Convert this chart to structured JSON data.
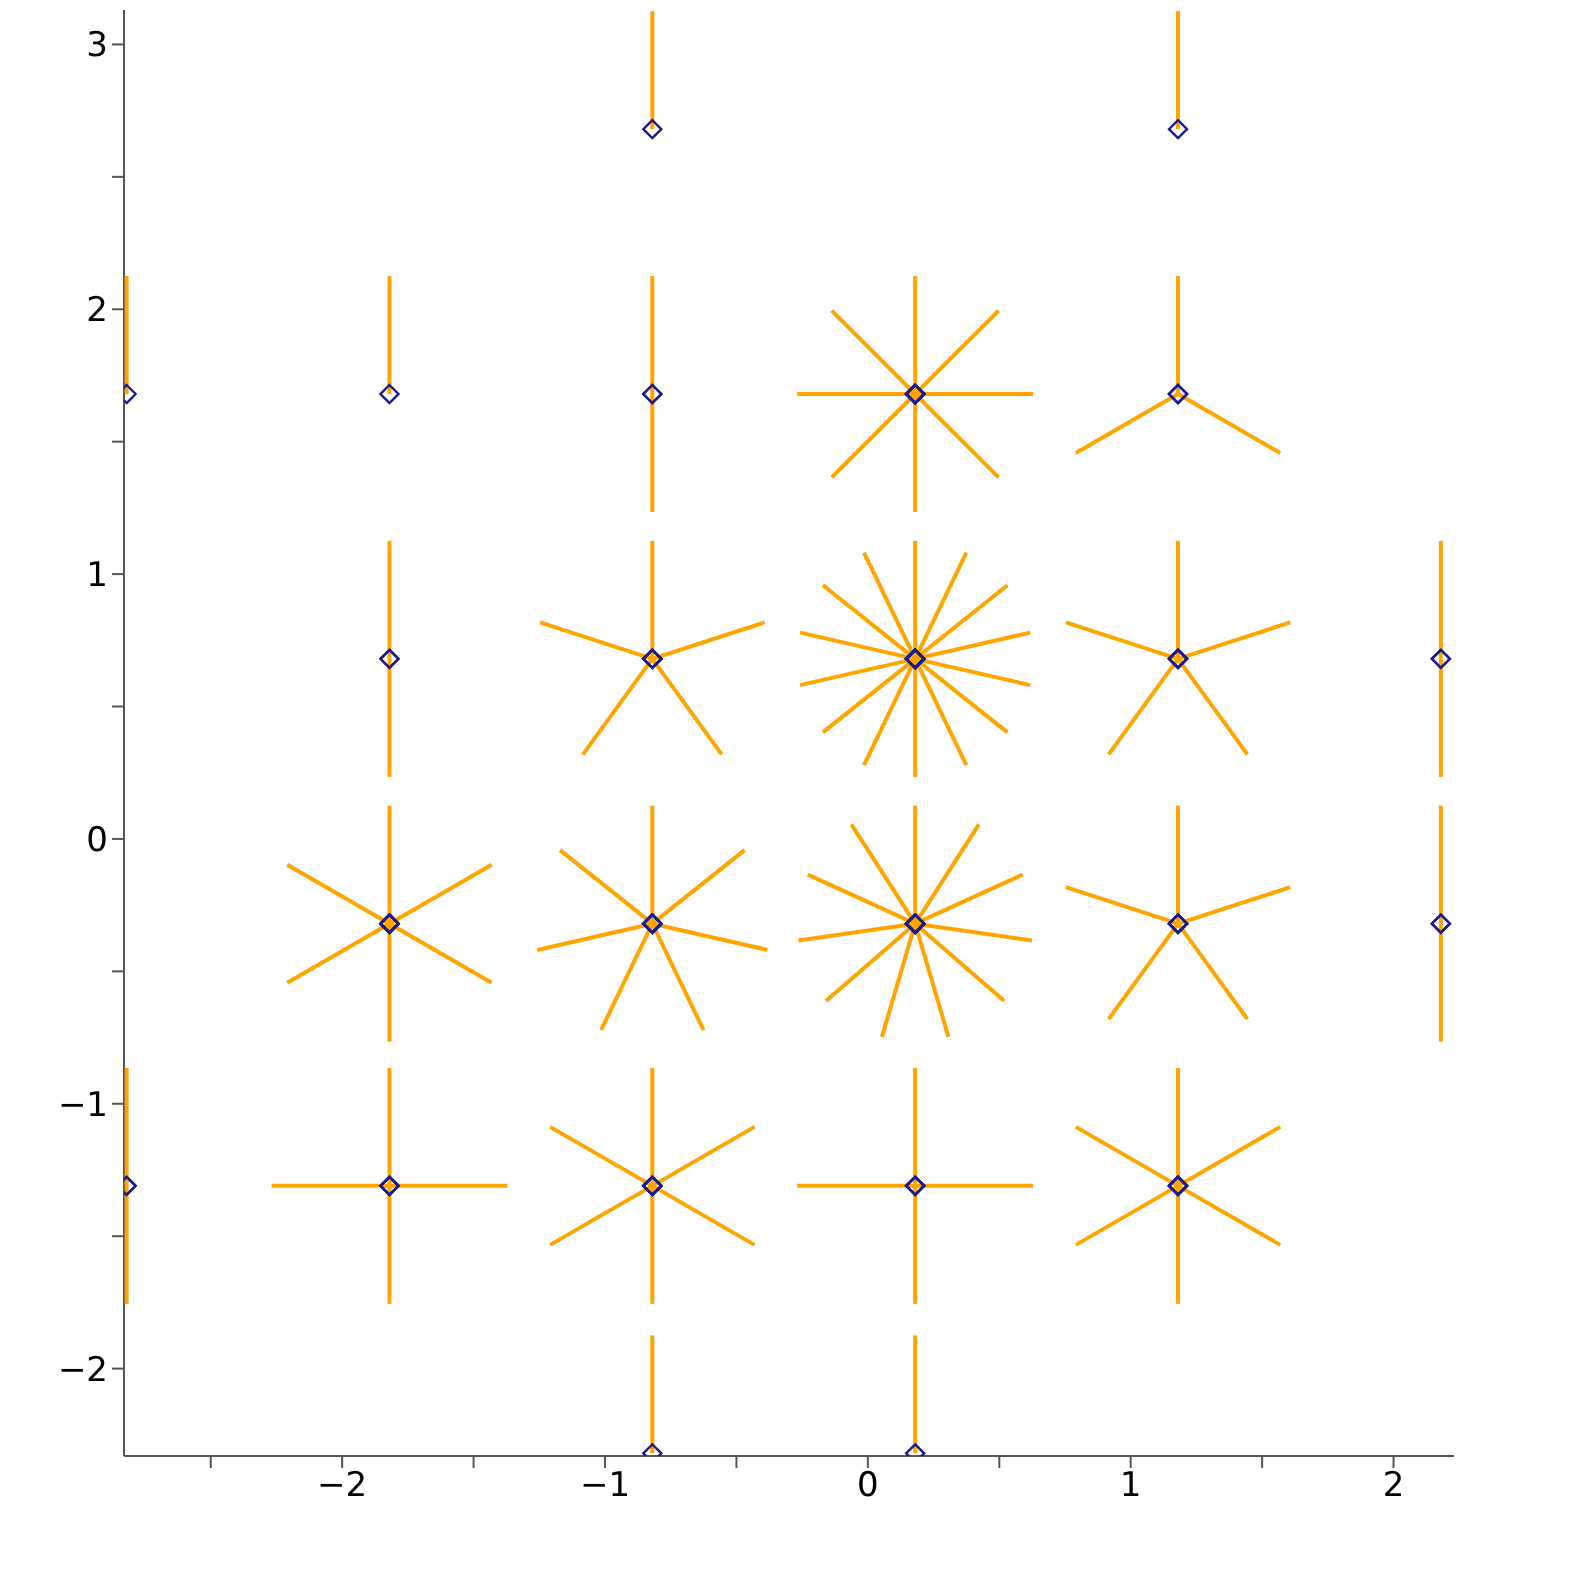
{
  "chart_data": {
    "type": "scatter",
    "marker": "diamond",
    "xlim": [
      -2.83,
      2.23
    ],
    "ylim": [
      -2.33,
      3.13
    ],
    "xticks": [
      -2,
      -1,
      0,
      1,
      2,
      {
        "value": -2.5,
        "label": null
      },
      {
        "value": -1.5,
        "label": null
      },
      {
        "value": -0.5,
        "label": null
      },
      {
        "value": 0.5,
        "label": null
      },
      {
        "value": 1.5,
        "label": null
      }
    ],
    "yticks": [
      -2,
      -1,
      0,
      1,
      2,
      3,
      {
        "value": -1.5,
        "label": null
      },
      {
        "value": -0.5,
        "label": null
      },
      {
        "value": 0.5,
        "label": null
      },
      {
        "value": 1.5,
        "label": null
      },
      {
        "value": 2.5,
        "label": null
      }
    ],
    "series": [
      {
        "color": "#1c1c8c",
        "x": [
          -0.82,
          1.18,
          -2.82,
          -1.82,
          -0.82,
          -0.82,
          0.18,
          0.18,
          0.18,
          0.18,
          0.18,
          0.18,
          0.18,
          0.18,
          1.18,
          1.18,
          1.18,
          -1.82,
          -1.82,
          -0.82,
          -0.82,
          -0.82,
          -0.82,
          -0.82,
          0.18,
          0.18,
          0.18,
          0.18,
          0.18,
          0.18,
          0.18,
          0.18,
          0.18,
          0.18,
          0.18,
          0.18,
          0.18,
          0.18,
          1.18,
          1.18,
          1.18,
          1.18,
          1.18,
          2.18,
          2.18,
          -1.82,
          -1.82,
          -1.82,
          -1.82,
          -1.82,
          -1.82,
          -0.82,
          -0.82,
          -0.82,
          -0.82,
          -0.82,
          -0.82,
          -0.82,
          0.18,
          0.18,
          0.18,
          0.18,
          0.18,
          0.18,
          0.18,
          0.18,
          0.18,
          0.18,
          0.18,
          1.18,
          1.18,
          1.18,
          1.18,
          1.18,
          2.18,
          2.18,
          -2.82,
          -2.82,
          -1.82,
          -1.82,
          -1.82,
          -1.82,
          -0.82,
          -0.82,
          -0.82,
          -0.82,
          -0.82,
          -0.82,
          0.18,
          0.18,
          0.18,
          0.18,
          1.18,
          1.18,
          1.18,
          1.18,
          1.18,
          1.18,
          -0.82,
          0.18
        ],
        "values": [
          2.68,
          2.68,
          1.68,
          1.68,
          1.68,
          1.68,
          1.68,
          1.68,
          1.68,
          1.68,
          1.68,
          1.68,
          1.68,
          1.68,
          1.68,
          1.68,
          1.68,
          0.68,
          0.68,
          0.68,
          0.68,
          0.68,
          0.68,
          0.68,
          0.68,
          0.68,
          0.68,
          0.68,
          0.68,
          0.68,
          0.68,
          0.68,
          0.68,
          0.68,
          0.68,
          0.68,
          0.68,
          0.68,
          0.68,
          0.68,
          0.68,
          0.68,
          0.68,
          0.68,
          0.68,
          -0.32,
          -0.32,
          -0.32,
          -0.32,
          -0.32,
          -0.32,
          -0.32,
          -0.32,
          -0.32,
          -0.32,
          -0.32,
          -0.32,
          -0.32,
          -0.32,
          -0.32,
          -0.32,
          -0.32,
          -0.32,
          -0.32,
          -0.32,
          -0.32,
          -0.32,
          -0.32,
          -0.32,
          -0.32,
          -0.32,
          -0.32,
          -0.32,
          -0.32,
          -0.32,
          -0.32,
          -1.31,
          -1.31,
          -1.31,
          -1.31,
          -1.31,
          -1.31,
          -1.31,
          -1.31,
          -1.31,
          -1.31,
          -1.31,
          -1.31,
          -1.31,
          -1.31,
          -1.31,
          -1.31,
          -1.31,
          -1.31,
          -1.31,
          -1.31,
          -1.31,
          -1.31,
          -2.32,
          -2.32
        ]
      }
    ]
  }
}
